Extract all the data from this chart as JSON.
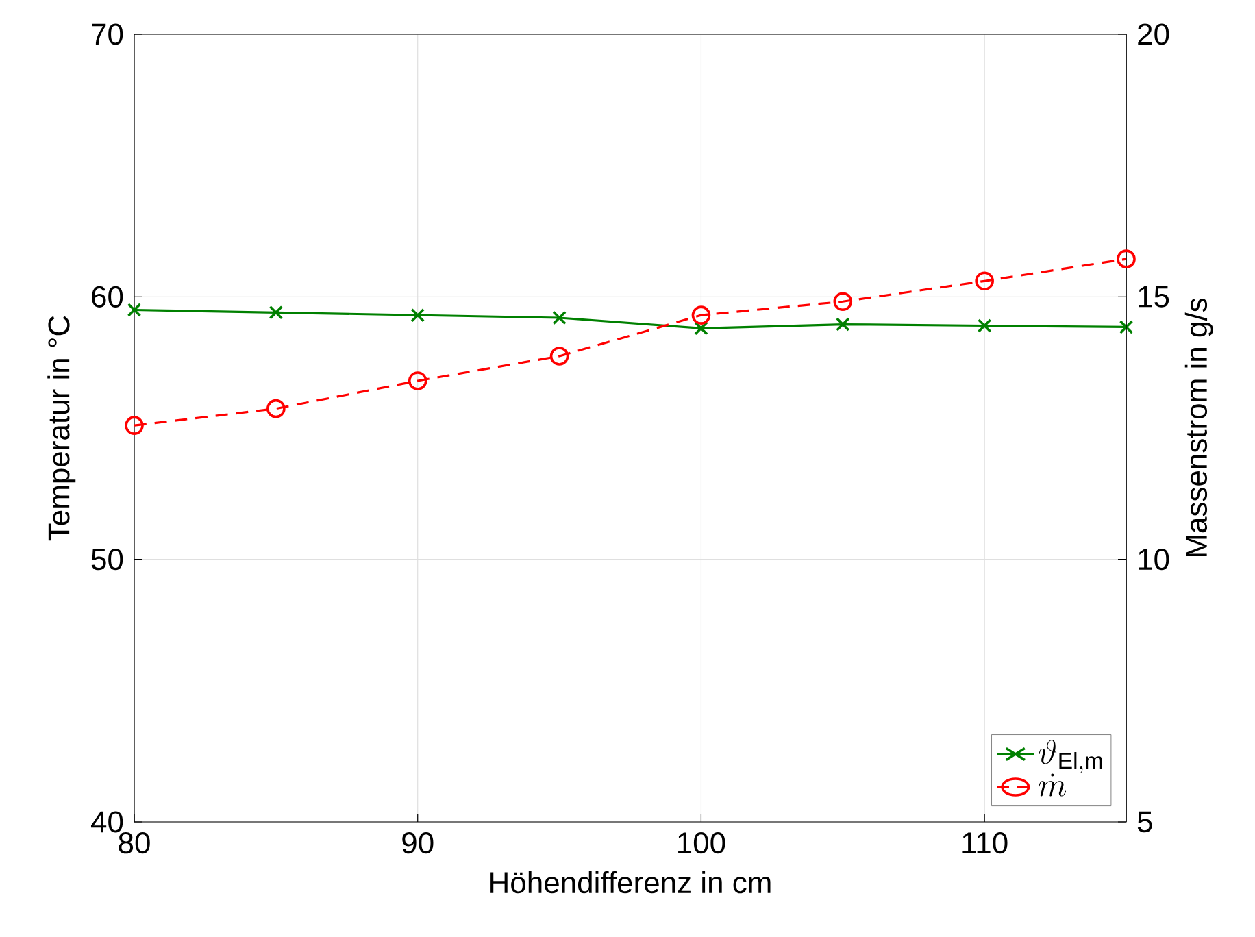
{
  "chart_data": {
    "type": "line",
    "xlabel": "Höhendifferenz in cm",
    "ylabel": "Temperatur in °C",
    "y2label": "Massenstrom in g/s",
    "x": [
      80,
      85,
      90,
      95,
      100,
      105,
      110,
      115
    ],
    "series": [
      {
        "name": "\\vartheta_{\\mathrm{El,m}}",
        "color": "#008000",
        "marker": "cross",
        "line_style": "solid",
        "values": [
          59.5,
          59.4,
          59.3,
          59.2,
          58.8,
          58.95,
          58.9,
          58.85
        ]
      },
      {
        "name": "\\dot{m}",
        "color": "#ff0000",
        "marker": "circle",
        "line_style": "dashed",
        "axis": "y2",
        "values": [
          12.55,
          12.87,
          13.4,
          13.87,
          14.65,
          14.91,
          15.3,
          15.72
        ]
      }
    ],
    "xlim": [
      80,
      115
    ],
    "xticks": [
      80,
      90,
      100,
      110
    ],
    "ylim": [
      40,
      70
    ],
    "yticks": [
      40,
      50,
      60,
      70
    ],
    "y2lim": [
      5,
      20
    ],
    "y2ticks": [
      5,
      10,
      15,
      20
    ],
    "grid": true,
    "legend": "bottom right"
  }
}
